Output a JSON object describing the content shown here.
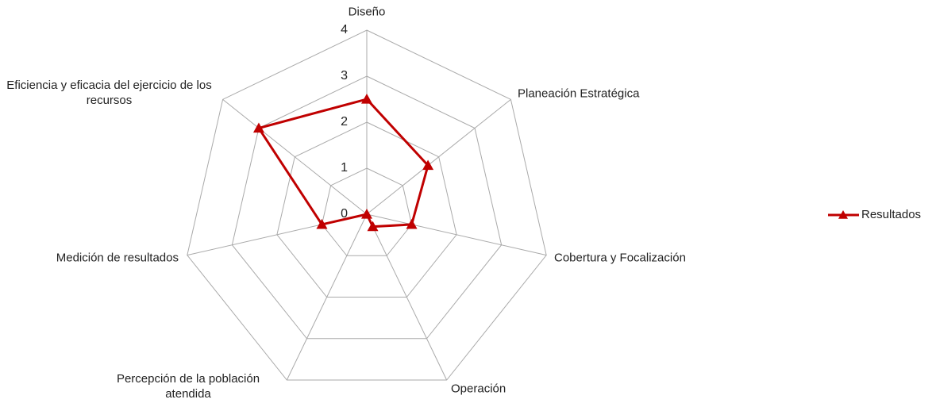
{
  "chart_data": {
    "type": "radar",
    "categories": [
      "Diseño",
      "Planeación Estratégica",
      "Cobertura y Focalización",
      "Operación",
      "Percepción de la población atendida",
      "Medición de resultados",
      "Eficiencia y eficacia del ejercicio de los recursos"
    ],
    "series": [
      {
        "name": "Resultados",
        "color": "#c00000",
        "values": [
          2.5,
          1.7,
          1.0,
          0.3,
          0,
          1.0,
          3.0
        ]
      }
    ],
    "ylim": [
      0,
      4
    ],
    "yticks": [
      0,
      1,
      2,
      3,
      4
    ],
    "grid": true,
    "legend": "right"
  }
}
